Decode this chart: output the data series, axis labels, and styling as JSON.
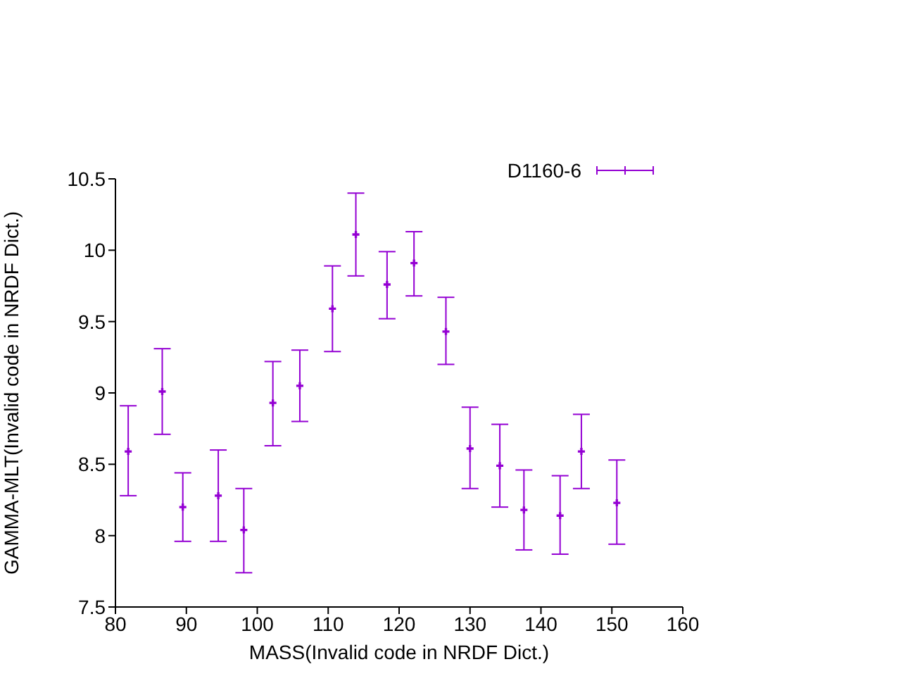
{
  "chart_data": {
    "type": "scatter",
    "xlabel": "MASS(Invalid code in NRDF Dict.)",
    "ylabel": "GAMMA-MLT(Invalid code in NRDF Dict.)",
    "xlim": [
      80,
      160
    ],
    "xticks": [
      80,
      90,
      100,
      110,
      120,
      130,
      140,
      150,
      160
    ],
    "ylim": [
      7.5,
      10.5
    ],
    "yticks": [
      7.5,
      8,
      8.5,
      9,
      9.5,
      10,
      10.5
    ],
    "grid": false,
    "marker": "cross",
    "legend": "top right",
    "series": [
      {
        "name": "D1160-6",
        "color": "#9400d3",
        "x": [
          81.8,
          86.6,
          89.5,
          94.5,
          98.1,
          102.2,
          106.0,
          110.6,
          113.9,
          118.3,
          122.1,
          126.6,
          130.0,
          134.2,
          137.6,
          142.7,
          145.7,
          150.7
        ],
        "values": [
          8.59,
          9.01,
          8.2,
          8.28,
          8.04,
          8.93,
          9.05,
          9.59,
          10.11,
          9.76,
          9.91,
          9.43,
          8.61,
          8.49,
          8.18,
          8.14,
          8.59,
          8.23
        ],
        "errors": [
          [
            8.28,
            8.91
          ],
          [
            8.71,
            9.31
          ],
          [
            7.96,
            8.44
          ],
          [
            7.96,
            8.6
          ],
          [
            7.74,
            8.33
          ],
          [
            8.63,
            9.22
          ],
          [
            8.8,
            9.3
          ],
          [
            9.29,
            9.89
          ],
          [
            9.82,
            10.4
          ],
          [
            9.52,
            9.99
          ],
          [
            9.68,
            10.13
          ],
          [
            9.2,
            9.67
          ],
          [
            8.33,
            8.9
          ],
          [
            8.2,
            8.78
          ],
          [
            7.9,
            8.46
          ],
          [
            7.87,
            8.42
          ],
          [
            8.33,
            8.85
          ],
          [
            7.94,
            8.53
          ]
        ]
      }
    ]
  }
}
